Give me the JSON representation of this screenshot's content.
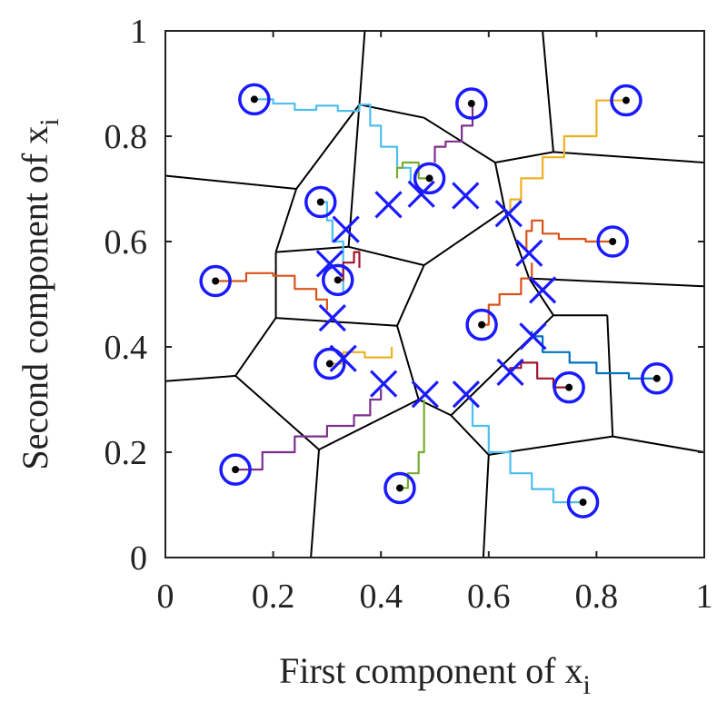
{
  "chart_data": {
    "type": "scatter",
    "title": "",
    "xlabel": "First component of x",
    "xlabel_sub": "i",
    "ylabel": "Second component of x",
    "ylabel_sub": "i",
    "xlim": [
      0,
      1
    ],
    "ylim": [
      0,
      1
    ],
    "xticks": [
      "0",
      "0.2",
      "0.4",
      "0.6",
      "0.8",
      "1"
    ],
    "yticks": [
      "0",
      "0.2",
      "0.4",
      "0.6",
      "0.8",
      "1"
    ],
    "grid": false,
    "legend": "none",
    "colors": {
      "axis": "#222222",
      "voronoi": "#000000",
      "marker": "#1a1aff",
      "point": "#000000",
      "paths": [
        "#4dbeee",
        "#7e2f8e",
        "#edb120",
        "#d95319",
        "#0072bd",
        "#a2142f",
        "#77ac30"
      ]
    },
    "points": [
      {
        "x": 0.165,
        "y": 0.87
      },
      {
        "x": 0.568,
        "y": 0.862
      },
      {
        "x": 0.855,
        "y": 0.868
      },
      {
        "x": 0.49,
        "y": 0.72
      },
      {
        "x": 0.288,
        "y": 0.675
      },
      {
        "x": 0.83,
        "y": 0.6
      },
      {
        "x": 0.093,
        "y": 0.525
      },
      {
        "x": 0.32,
        "y": 0.527
      },
      {
        "x": 0.587,
        "y": 0.442
      },
      {
        "x": 0.305,
        "y": 0.368
      },
      {
        "x": 0.749,
        "y": 0.323
      },
      {
        "x": 0.912,
        "y": 0.34
      },
      {
        "x": 0.13,
        "y": 0.167
      },
      {
        "x": 0.435,
        "y": 0.132
      },
      {
        "x": 0.775,
        "y": 0.105
      }
    ],
    "x_markers": [
      {
        "x": 0.414,
        "y": 0.67
      },
      {
        "x": 0.475,
        "y": 0.69
      },
      {
        "x": 0.557,
        "y": 0.687
      },
      {
        "x": 0.637,
        "y": 0.653
      },
      {
        "x": 0.335,
        "y": 0.623
      },
      {
        "x": 0.675,
        "y": 0.578
      },
      {
        "x": 0.305,
        "y": 0.558
      },
      {
        "x": 0.7,
        "y": 0.508
      },
      {
        "x": 0.31,
        "y": 0.455
      },
      {
        "x": 0.682,
        "y": 0.42
      },
      {
        "x": 0.33,
        "y": 0.378
      },
      {
        "x": 0.64,
        "y": 0.352
      },
      {
        "x": 0.405,
        "y": 0.33
      },
      {
        "x": 0.482,
        "y": 0.31
      },
      {
        "x": 0.558,
        "y": 0.31
      }
    ],
    "voronoi_edges": [
      [
        [
          0.37,
          1
        ],
        [
          0.36,
          0.86
        ]
      ],
      [
        [
          0.36,
          0.86
        ],
        [
          0.243,
          0.7
        ]
      ],
      [
        [
          0.36,
          0.86
        ],
        [
          0.48,
          0.835
        ]
      ],
      [
        [
          0.48,
          0.835
        ],
        [
          0.612,
          0.75
        ]
      ],
      [
        [
          0.612,
          0.75
        ],
        [
          0.72,
          0.77
        ]
      ],
      [
        [
          0.612,
          0.75
        ],
        [
          0.63,
          0.66
        ]
      ],
      [
        [
          0.72,
          0.77
        ],
        [
          0.7,
          1
        ]
      ],
      [
        [
          0.72,
          0.77
        ],
        [
          1,
          0.75
        ]
      ],
      [
        [
          0.243,
          0.7
        ],
        [
          0,
          0.725
        ]
      ],
      [
        [
          0.243,
          0.7
        ],
        [
          0.205,
          0.58
        ]
      ],
      [
        [
          0.205,
          0.58
        ],
        [
          0.34,
          0.59
        ]
      ],
      [
        [
          0.34,
          0.59
        ],
        [
          0.36,
          0.86
        ]
      ],
      [
        [
          0.34,
          0.59
        ],
        [
          0.48,
          0.555
        ]
      ],
      [
        [
          0.48,
          0.555
        ],
        [
          0.63,
          0.66
        ]
      ],
      [
        [
          0.63,
          0.66
        ],
        [
          0.675,
          0.53
        ]
      ],
      [
        [
          0.675,
          0.53
        ],
        [
          1,
          0.515
        ]
      ],
      [
        [
          0.675,
          0.53
        ],
        [
          0.72,
          0.46
        ]
      ],
      [
        [
          0.72,
          0.46
        ],
        [
          0.82,
          0.46
        ]
      ],
      [
        [
          0.82,
          0.46
        ],
        [
          0.83,
          0.23
        ]
      ],
      [
        [
          0.83,
          0.23
        ],
        [
          1,
          0.2
        ]
      ],
      [
        [
          0.83,
          0.23
        ],
        [
          0.6,
          0.195
        ]
      ],
      [
        [
          0.6,
          0.195
        ],
        [
          0.53,
          0.27
        ]
      ],
      [
        [
          0.53,
          0.27
        ],
        [
          0.47,
          0.3
        ]
      ],
      [
        [
          0.6,
          0.195
        ],
        [
          0.59,
          0
        ]
      ],
      [
        [
          0.72,
          0.46
        ],
        [
          0.53,
          0.27
        ]
      ],
      [
        [
          0.48,
          0.555
        ],
        [
          0.43,
          0.44
        ]
      ],
      [
        [
          0.43,
          0.44
        ],
        [
          0.47,
          0.3
        ]
      ],
      [
        [
          0.205,
          0.58
        ],
        [
          0.205,
          0.455
        ]
      ],
      [
        [
          0.205,
          0.455
        ],
        [
          0.43,
          0.44
        ]
      ],
      [
        [
          0.205,
          0.455
        ],
        [
          0.13,
          0.345
        ]
      ],
      [
        [
          0.13,
          0.345
        ],
        [
          0,
          0.335
        ]
      ],
      [
        [
          0.13,
          0.345
        ],
        [
          0.285,
          0.205
        ]
      ],
      [
        [
          0.285,
          0.205
        ],
        [
          0.47,
          0.3
        ]
      ],
      [
        [
          0.285,
          0.205
        ],
        [
          0.27,
          0
        ]
      ]
    ],
    "paths": [
      {
        "color": 0,
        "pts": [
          [
            0.165,
            0.87
          ],
          [
            0.2,
            0.862
          ],
          [
            0.24,
            0.85
          ],
          [
            0.28,
            0.858
          ],
          [
            0.32,
            0.848
          ],
          [
            0.36,
            0.86
          ],
          [
            0.38,
            0.82
          ],
          [
            0.4,
            0.78
          ],
          [
            0.43,
            0.74
          ],
          [
            0.455,
            0.71
          ]
        ]
      },
      {
        "color": 1,
        "pts": [
          [
            0.568,
            0.862
          ],
          [
            0.57,
            0.82
          ],
          [
            0.55,
            0.79
          ],
          [
            0.52,
            0.78
          ],
          [
            0.5,
            0.75
          ]
        ]
      },
      {
        "color": 2,
        "pts": [
          [
            0.855,
            0.868
          ],
          [
            0.8,
            0.8
          ],
          [
            0.74,
            0.76
          ],
          [
            0.7,
            0.72
          ],
          [
            0.66,
            0.68
          ],
          [
            0.64,
            0.655
          ]
        ]
      },
      {
        "color": 6,
        "pts": [
          [
            0.49,
            0.72
          ],
          [
            0.47,
            0.75
          ],
          [
            0.44,
            0.74
          ],
          [
            0.43,
            0.72
          ]
        ]
      },
      {
        "color": 0,
        "pts": [
          [
            0.288,
            0.675
          ],
          [
            0.3,
            0.64
          ],
          [
            0.31,
            0.6
          ],
          [
            0.33,
            0.55
          ],
          [
            0.33,
            0.5
          ]
        ]
      },
      {
        "color": 3,
        "pts": [
          [
            0.83,
            0.6
          ],
          [
            0.78,
            0.605
          ],
          [
            0.73,
            0.615
          ],
          [
            0.7,
            0.64
          ],
          [
            0.68,
            0.62
          ],
          [
            0.67,
            0.58
          ]
        ]
      },
      {
        "color": 3,
        "pts": [
          [
            0.093,
            0.525
          ],
          [
            0.15,
            0.54
          ],
          [
            0.2,
            0.535
          ],
          [
            0.24,
            0.51
          ],
          [
            0.28,
            0.49
          ],
          [
            0.3,
            0.47
          ]
        ]
      },
      {
        "color": 5,
        "pts": [
          [
            0.32,
            0.527
          ],
          [
            0.33,
            0.56
          ],
          [
            0.35,
            0.58
          ],
          [
            0.36,
            0.55
          ]
        ]
      },
      {
        "color": 3,
        "pts": [
          [
            0.587,
            0.442
          ],
          [
            0.6,
            0.48
          ],
          [
            0.62,
            0.5
          ],
          [
            0.66,
            0.53
          ],
          [
            0.68,
            0.56
          ]
        ]
      },
      {
        "color": 2,
        "pts": [
          [
            0.305,
            0.368
          ],
          [
            0.33,
            0.39
          ],
          [
            0.37,
            0.38
          ],
          [
            0.42,
            0.4
          ]
        ]
      },
      {
        "color": 4,
        "pts": [
          [
            0.912,
            0.34
          ],
          [
            0.86,
            0.35
          ],
          [
            0.8,
            0.37
          ],
          [
            0.75,
            0.39
          ],
          [
            0.7,
            0.42
          ],
          [
            0.68,
            0.43
          ]
        ]
      },
      {
        "color": 5,
        "pts": [
          [
            0.749,
            0.323
          ],
          [
            0.72,
            0.34
          ],
          [
            0.69,
            0.37
          ],
          [
            0.66,
            0.36
          ],
          [
            0.64,
            0.35
          ]
        ]
      },
      {
        "color": 1,
        "pts": [
          [
            0.13,
            0.167
          ],
          [
            0.18,
            0.2
          ],
          [
            0.24,
            0.23
          ],
          [
            0.3,
            0.25
          ],
          [
            0.35,
            0.27
          ],
          [
            0.38,
            0.3
          ],
          [
            0.4,
            0.32
          ]
        ]
      },
      {
        "color": 6,
        "pts": [
          [
            0.435,
            0.132
          ],
          [
            0.45,
            0.16
          ],
          [
            0.47,
            0.2
          ],
          [
            0.48,
            0.25
          ],
          [
            0.48,
            0.3
          ]
        ]
      },
      {
        "color": 0,
        "pts": [
          [
            0.775,
            0.105
          ],
          [
            0.72,
            0.13
          ],
          [
            0.68,
            0.16
          ],
          [
            0.64,
            0.2
          ],
          [
            0.6,
            0.25
          ],
          [
            0.57,
            0.3
          ]
        ]
      }
    ]
  }
}
